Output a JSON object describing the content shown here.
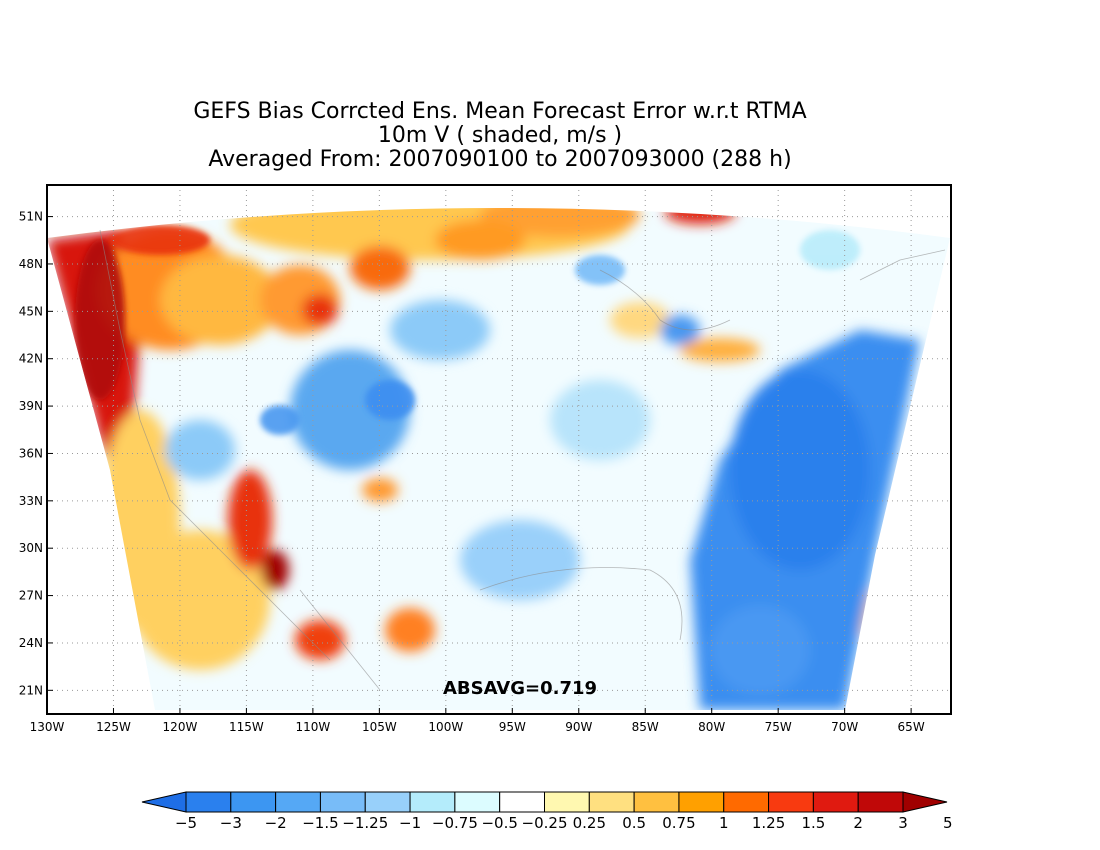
{
  "titles": {
    "line1": "GEFS Bias Corrcted Ens. Mean Forecast Error w.r.t RTMA",
    "line2": "10m V ( shaded, m/s )",
    "line3": "Averaged From: 2007090100 to 2007093000 (288 h)"
  },
  "map": {
    "lon_range": [
      -130,
      -62
    ],
    "lat_range": [
      19.5,
      53
    ],
    "lon_ticks": [
      "130W",
      "125W",
      "120W",
      "115W",
      "110W",
      "105W",
      "100W",
      "95W",
      "90W",
      "85W",
      "80W",
      "75W",
      "70W",
      "65W"
    ],
    "lon_tick_values": [
      -130,
      -125,
      -120,
      -115,
      -110,
      -105,
      -100,
      -95,
      -90,
      -85,
      -80,
      -75,
      -70,
      -65
    ],
    "lat_ticks": [
      "21N",
      "24N",
      "27N",
      "30N",
      "33N",
      "36N",
      "39N",
      "42N",
      "45N",
      "48N",
      "51N"
    ],
    "lat_tick_values": [
      21,
      24,
      27,
      30,
      33,
      36,
      39,
      42,
      45,
      48,
      51
    ],
    "grid": "dotted",
    "annotation": "ABSAVG=0.719"
  },
  "colorbar": {
    "labels": [
      "−5",
      "−3",
      "−2",
      "−1.5",
      "−1.25",
      "−1",
      "−0.75",
      "−0.5",
      "−0.25",
      "0.25",
      "0.5",
      "0.75",
      "1",
      "1.25",
      "1.5",
      "2",
      "3",
      "5"
    ],
    "colors": [
      "#1e6ee6",
      "#2a80ee",
      "#3c96f2",
      "#55a8f5",
      "#78bcf8",
      "#98d0fa",
      "#b4ecfb",
      "#dcfcff",
      "#ffffff",
      "#fff8b0",
      "#ffe080",
      "#ffc040",
      "#ffa000",
      "#ff6a00",
      "#f83a10",
      "#e01a10",
      "#c00808",
      "#a00000"
    ]
  }
}
